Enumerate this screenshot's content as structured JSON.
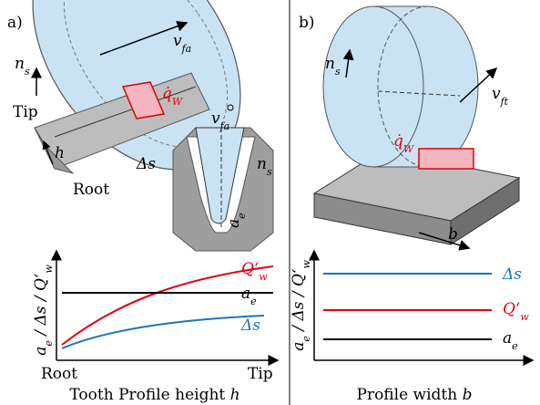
{
  "panel_a": {
    "label": "a)",
    "illustration": {
      "rotation": {
        "main": "n",
        "sub": "s"
      },
      "feed": {
        "main": "v",
        "sub": "fa"
      },
      "heat": {
        "main": "q̇",
        "sub": "W"
      },
      "tip": "Tip",
      "height": "h",
      "root": "Root",
      "chip": "Δs",
      "feed_detail": {
        "main": "v",
        "sub": "fa"
      },
      "rotation_detail": {
        "main": "n",
        "sub": "s"
      },
      "depth": {
        "main": "a",
        "sub": "e"
      }
    },
    "plot": {
      "y_label": [
        {
          "main": "a",
          "sub": "e"
        },
        {
          "main": " / Δs / Q‘",
          "sub": "w"
        }
      ],
      "curves": [
        {
          "main": "Q‘",
          "sub": "w"
        },
        {
          "main": "a",
          "sub": "e"
        },
        {
          "main": "Δs"
        }
      ],
      "x_start": "Root",
      "x_end": "Tip",
      "x_label": "Tooth Profile height",
      "x_var": "h"
    }
  },
  "panel_b": {
    "label": "b)",
    "illustration": {
      "rotation": {
        "main": "n",
        "sub": "s"
      },
      "feed": {
        "main": "v",
        "sub": "ft"
      },
      "heat": {
        "main": "q̇",
        "sub": "W"
      },
      "width": "b"
    },
    "plot": {
      "y_label": [
        {
          "main": "a",
          "sub": "e"
        },
        {
          "main": " / Δs / Q‘",
          "sub": "w"
        }
      ],
      "curves": [
        {
          "main": "Δs"
        },
        {
          "main": "Q‘",
          "sub": "w"
        },
        {
          "main": "a",
          "sub": "e"
        }
      ],
      "x_label": "Profile width",
      "x_var": "b"
    }
  }
}
